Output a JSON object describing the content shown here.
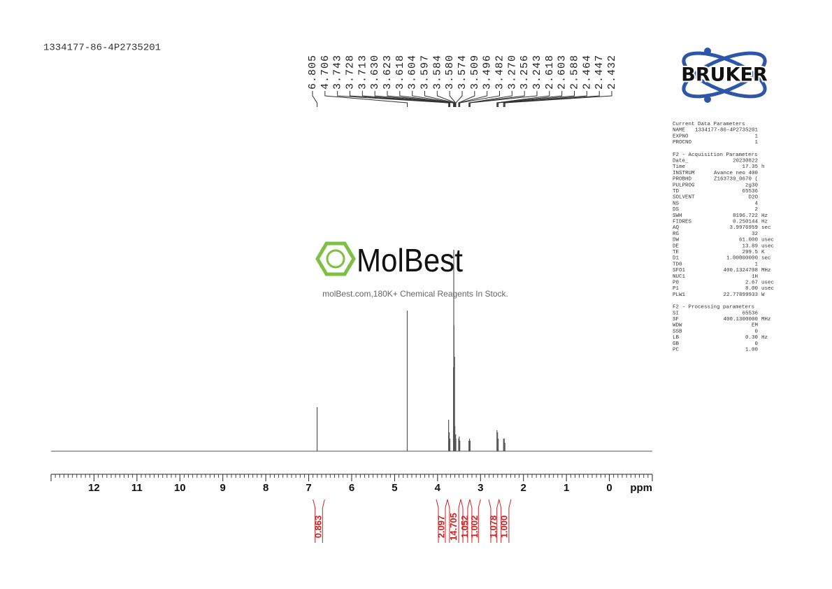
{
  "sample_id": "1334177-86-4P2735201",
  "logo": {
    "brand": "BRUKER"
  },
  "watermark": {
    "name": "MolBest",
    "tagline": "molBest.com,180K+ Chemical Reagents In Stock."
  },
  "chart_data": {
    "type": "spectrum",
    "x_label": "ppm",
    "xlim": [
      13,
      -1
    ],
    "xticks": [
      12,
      11,
      10,
      9,
      8,
      7,
      6,
      5,
      4,
      3,
      2,
      1,
      0
    ],
    "ylim": [
      0,
      100
    ],
    "color": "#555555",
    "peaks": {
      "x": [
        6.805,
        4.706,
        3.743,
        3.728,
        3.713,
        {
          "value": 3.63,
          "label": "3.630"
        },
        3.623,
        3.618,
        3.604,
        3.597,
        3.584,
        {
          "value": 3.58,
          "label": "3.580"
        },
        3.574,
        3.509,
        3.496,
        3.482,
        {
          "value": 3.27,
          "label": "3.270"
        },
        3.256,
        3.243,
        2.618,
        2.603,
        2.588,
        2.464,
        2.447,
        2.432
      ],
      "values": [
        21,
        67,
        15,
        9,
        6,
        40,
        96,
        60,
        45,
        12,
        8,
        8,
        6,
        6,
        7,
        5,
        5,
        6,
        5,
        10,
        9,
        6,
        6,
        6,
        4
      ]
    },
    "integrals": {
      "color": "#cc2222",
      "ranges": [
        [
          6.9,
          6.63
        ],
        [
          4.03,
          3.77
        ],
        [
          3.77,
          3.46
        ],
        [
          3.46,
          3.25
        ],
        [
          3.25,
          3.0
        ],
        [
          2.81,
          2.57
        ],
        [
          2.57,
          2.29
        ]
      ],
      "values": [
        0.863,
        2.097,
        14.705,
        1.052,
        1.002,
        1.078,
        1
      ],
      "value_labels": [
        "0.863",
        "2.097",
        "14.705",
        "1.052",
        "1.002",
        "1.078",
        "1.000"
      ]
    }
  },
  "parameters": [
    {
      "title": "Current Data Parameters",
      "rows": [
        [
          "NAME",
          "1334177-86-4P2735201"
        ],
        [
          "EXPNO",
          "1"
        ],
        [
          "PROCNO",
          "1"
        ]
      ]
    },
    {
      "title": "F2 - Acquisition Parameters",
      "rows": [
        [
          "Date_",
          "20230822"
        ],
        [
          "Time",
          "17.35",
          "h"
        ],
        [
          "INSTRUM",
          "Avance neo 400"
        ],
        [
          "PROBHD",
          "Z163739_0670 ("
        ],
        [
          "PULPROG",
          "zg30"
        ],
        [
          "TD",
          "65536"
        ],
        [
          "SOLVENT",
          "D2O"
        ],
        [
          "NS",
          "4"
        ],
        [
          "DS",
          "2"
        ],
        [
          "SWH",
          "8196.722",
          "Hz"
        ],
        [
          "FIDRES",
          "0.250144",
          "Hz"
        ],
        [
          "AQ",
          "3.9976959",
          "sec"
        ],
        [
          "RG",
          "32"
        ],
        [
          "DW",
          "61.000",
          "usec"
        ],
        [
          "DE",
          "13.89",
          "usec"
        ],
        [
          "TE",
          "299.5",
          "K"
        ],
        [
          "D1",
          "1.00000000",
          "sec"
        ],
        [
          "TD0",
          "1"
        ],
        [
          "SFO1",
          "400.1324708",
          "MHz"
        ],
        [
          "NUC1",
          "1H"
        ],
        [
          "P0",
          "2.67",
          "usec"
        ],
        [
          "P1",
          "8.00",
          "usec"
        ],
        [
          "PLW1",
          "22.77899933",
          "W"
        ]
      ]
    },
    {
      "title": "F2 - Processing parameters",
      "rows": [
        [
          "SI",
          "65536"
        ],
        [
          "SF",
          "400.1300000",
          "MHz"
        ],
        [
          "WDW",
          "EM"
        ],
        [
          "SSB",
          "0"
        ],
        [
          "LB",
          "0.30",
          "Hz"
        ],
        [
          "GB",
          "0"
        ],
        [
          "PC",
          "1.00"
        ]
      ]
    }
  ]
}
